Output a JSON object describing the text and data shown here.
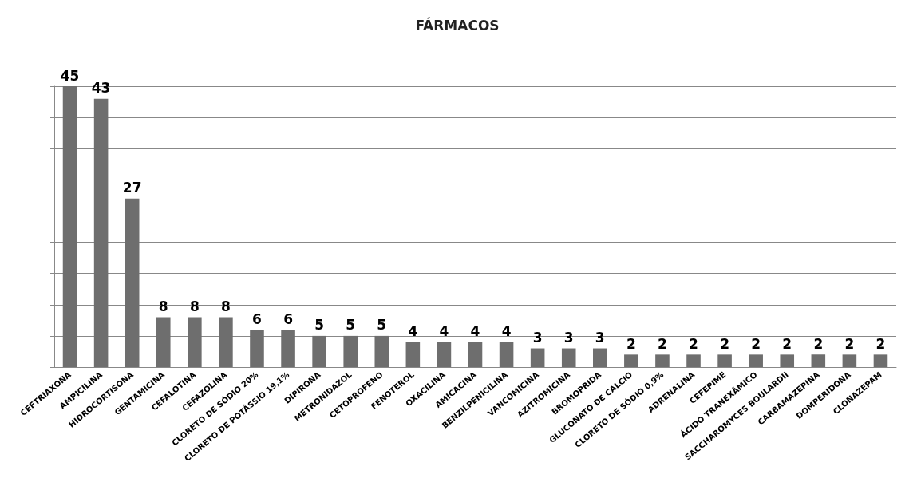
{
  "chart_data": {
    "type": "bar",
    "title": "FÁRMACOS",
    "categories": [
      "CEFTRIAXONA",
      "AMPICILINA",
      "HIDROCORTISONA",
      "GENTAMICINA",
      "CEFALOTINA",
      "CEFAZOLINA",
      "CLORETO DE SÓDIO 20%",
      "CLORETO DE POTÁSSIO 19,1%",
      "DIPIRONA",
      "METRONIDAZOL",
      "CETOPROFENO",
      "FENOTEROL",
      "OXACILINA",
      "AMICACINA",
      "BENZILPENICILINA",
      "VANCOMICINA",
      "AZITROMICINA",
      "BROMOPRIDA",
      "GLUCONATO DE CALCIO",
      "CLORETO DE SÓDIO 0,9%",
      "ADRENALINA",
      "CEFEPIME",
      "ÁCIDO TRANEXÂMICO",
      "SACCHAROMYCES BOULARDII",
      "CARBAMAZEPINA",
      "DOMPERIDONA",
      "CLONAZEPAM"
    ],
    "values": [
      45,
      43,
      27,
      8,
      8,
      8,
      6,
      6,
      5,
      5,
      5,
      4,
      4,
      4,
      4,
      3,
      3,
      3,
      2,
      2,
      2,
      2,
      2,
      2,
      2,
      2,
      2
    ],
    "color": "#6e6e6e",
    "data_labels": true,
    "grid": "y",
    "tick_labels": "x",
    "ylim": [
      0,
      45
    ],
    "yticks": [
      {
        "value": 0,
        "label": null
      },
      {
        "value": 5,
        "label": null
      },
      {
        "value": 10,
        "label": null
      },
      {
        "value": 15,
        "label": null
      },
      {
        "value": 20,
        "label": null
      },
      {
        "value": 25,
        "label": null
      },
      {
        "value": 30,
        "label": null
      },
      {
        "value": 35,
        "label": null
      },
      {
        "value": 40,
        "label": null
      },
      {
        "value": 45,
        "label": null
      }
    ]
  }
}
